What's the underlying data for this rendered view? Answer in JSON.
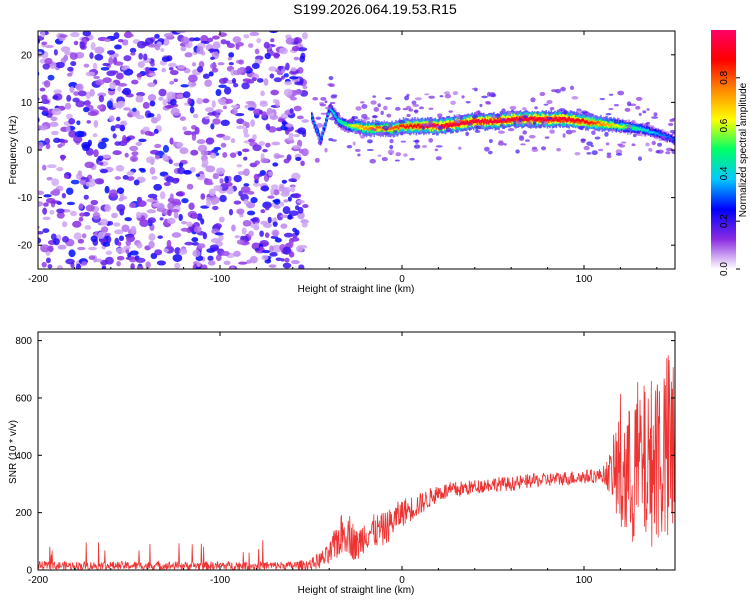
{
  "title": "S199.2026.064.19.53.R15",
  "chart_data": [
    {
      "type": "heatmap",
      "title": "S199.2026.064.19.53.R15",
      "xlabel": "Height of straight line (km)",
      "ylabel": "Frequency (Hz)",
      "xlim": [
        -200,
        150
      ],
      "ylim": [
        -25,
        25
      ],
      "xticks": [
        -200,
        -100,
        0,
        100
      ],
      "yticks": [
        -20,
        -10,
        0,
        10,
        20
      ],
      "noise_region_km": [
        -200,
        -50
      ],
      "ridge": {
        "x": [
          -50,
          -45,
          -40,
          -35,
          -30,
          -25,
          -20,
          -15,
          -10,
          -5,
          0,
          10,
          20,
          30,
          40,
          50,
          60,
          70,
          80,
          90,
          100,
          110,
          120,
          130,
          140,
          150
        ],
        "freq": [
          7,
          2,
          9,
          6,
          5,
          5,
          4.5,
          4.5,
          4.5,
          4.5,
          5,
          5,
          5,
          5.5,
          6,
          6,
          6.5,
          6.5,
          6.5,
          6.5,
          6,
          5.5,
          5,
          4.5,
          3.5,
          2
        ],
        "amplitude": [
          0.35,
          0.35,
          0.4,
          0.45,
          0.55,
          0.7,
          0.75,
          0.8,
          0.75,
          0.8,
          0.85,
          0.9,
          0.95,
          0.95,
          0.95,
          0.95,
          0.95,
          0.95,
          0.95,
          0.95,
          0.9,
          0.75,
          0.6,
          0.45,
          0.35,
          0.3
        ]
      },
      "colorbar": {
        "label": "Normalized spectral amplitude",
        "range": [
          0.0,
          1.0
        ],
        "ticks": [
          "0.0",
          "0.2",
          "0.4",
          "0.6",
          "0.8"
        ],
        "colors": [
          "#ffffff",
          "#8a2be2",
          "#0000ff",
          "#00c8ff",
          "#00ff66",
          "#ffff00",
          "#ff8800",
          "#ff0000",
          "#ff0066"
        ]
      }
    },
    {
      "type": "line",
      "xlabel": "Height of straight line (km)",
      "ylabel": "SNR (10 * v/v)",
      "xlim": [
        -200,
        150
      ],
      "ylim": [
        0,
        830
      ],
      "xticks": [
        -200,
        -100,
        0,
        100
      ],
      "yticks": [
        0,
        200,
        400,
        600,
        800
      ],
      "line_color": "#ee3333",
      "series": [
        {
          "name": "SNR",
          "x": [
            -200,
            -180,
            -160,
            -140,
            -120,
            -100,
            -80,
            -60,
            -50,
            -40,
            -35,
            -30,
            -25,
            -20,
            -10,
            0,
            10,
            20,
            30,
            40,
            50,
            60,
            70,
            80,
            90,
            100,
            110,
            115,
            120,
            125,
            130,
            135,
            140,
            145,
            150
          ],
          "y": [
            15,
            15,
            15,
            15,
            15,
            15,
            15,
            15,
            20,
            50,
            110,
            140,
            80,
            130,
            140,
            200,
            230,
            270,
            280,
            290,
            300,
            300,
            310,
            315,
            320,
            325,
            330,
            340,
            350,
            320,
            380,
            350,
            420,
            400,
            380
          ],
          "spread": [
            15,
            15,
            15,
            15,
            15,
            15,
            15,
            15,
            20,
            40,
            70,
            80,
            60,
            60,
            60,
            50,
            40,
            30,
            30,
            25,
            25,
            25,
            25,
            25,
            25,
            25,
            25,
            80,
            280,
            250,
            300,
            280,
            330,
            360,
            420
          ]
        }
      ]
    }
  ]
}
